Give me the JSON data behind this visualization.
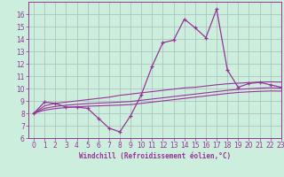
{
  "xlabel": "Windchill (Refroidissement éolien,°C)",
  "background_color": "#cceedd",
  "grid_color": "#aabbbb",
  "line_color": "#993399",
  "x_data": [
    0,
    1,
    2,
    3,
    4,
    5,
    6,
    7,
    8,
    9,
    10,
    11,
    12,
    13,
    14,
    15,
    16,
    17,
    18,
    19,
    20,
    21,
    22,
    23
  ],
  "y_main": [
    8.0,
    8.9,
    8.8,
    8.5,
    8.5,
    8.4,
    7.6,
    6.8,
    6.5,
    7.8,
    9.5,
    11.8,
    13.7,
    13.9,
    15.6,
    14.9,
    14.1,
    16.4,
    11.5,
    10.1,
    10.4,
    10.5,
    10.3,
    10.1
  ],
  "y_line1": [
    8.0,
    8.6,
    8.8,
    8.9,
    9.0,
    9.1,
    9.2,
    9.3,
    9.45,
    9.55,
    9.65,
    9.75,
    9.85,
    9.95,
    10.05,
    10.1,
    10.2,
    10.3,
    10.38,
    10.43,
    10.48,
    10.52,
    10.54,
    10.52
  ],
  "y_line2": [
    8.0,
    8.4,
    8.55,
    8.65,
    8.72,
    8.78,
    8.82,
    8.86,
    8.9,
    8.95,
    9.05,
    9.15,
    9.25,
    9.35,
    9.45,
    9.55,
    9.65,
    9.75,
    9.85,
    9.93,
    9.98,
    10.03,
    10.06,
    10.04
  ],
  "y_line3": [
    8.0,
    8.25,
    8.38,
    8.46,
    8.52,
    8.57,
    8.6,
    8.63,
    8.66,
    8.7,
    8.8,
    8.9,
    9.0,
    9.1,
    9.2,
    9.3,
    9.4,
    9.5,
    9.6,
    9.68,
    9.73,
    9.77,
    9.8,
    9.79
  ],
  "ylim": [
    6,
    17
  ],
  "xlim": [
    -0.5,
    23
  ],
  "yticks": [
    6,
    7,
    8,
    9,
    10,
    11,
    12,
    13,
    14,
    15,
    16
  ],
  "xticks": [
    0,
    1,
    2,
    3,
    4,
    5,
    6,
    7,
    8,
    9,
    10,
    11,
    12,
    13,
    14,
    15,
    16,
    17,
    18,
    19,
    20,
    21,
    22,
    23
  ],
  "tick_fontsize": 5.5,
  "xlabel_fontsize": 5.5
}
